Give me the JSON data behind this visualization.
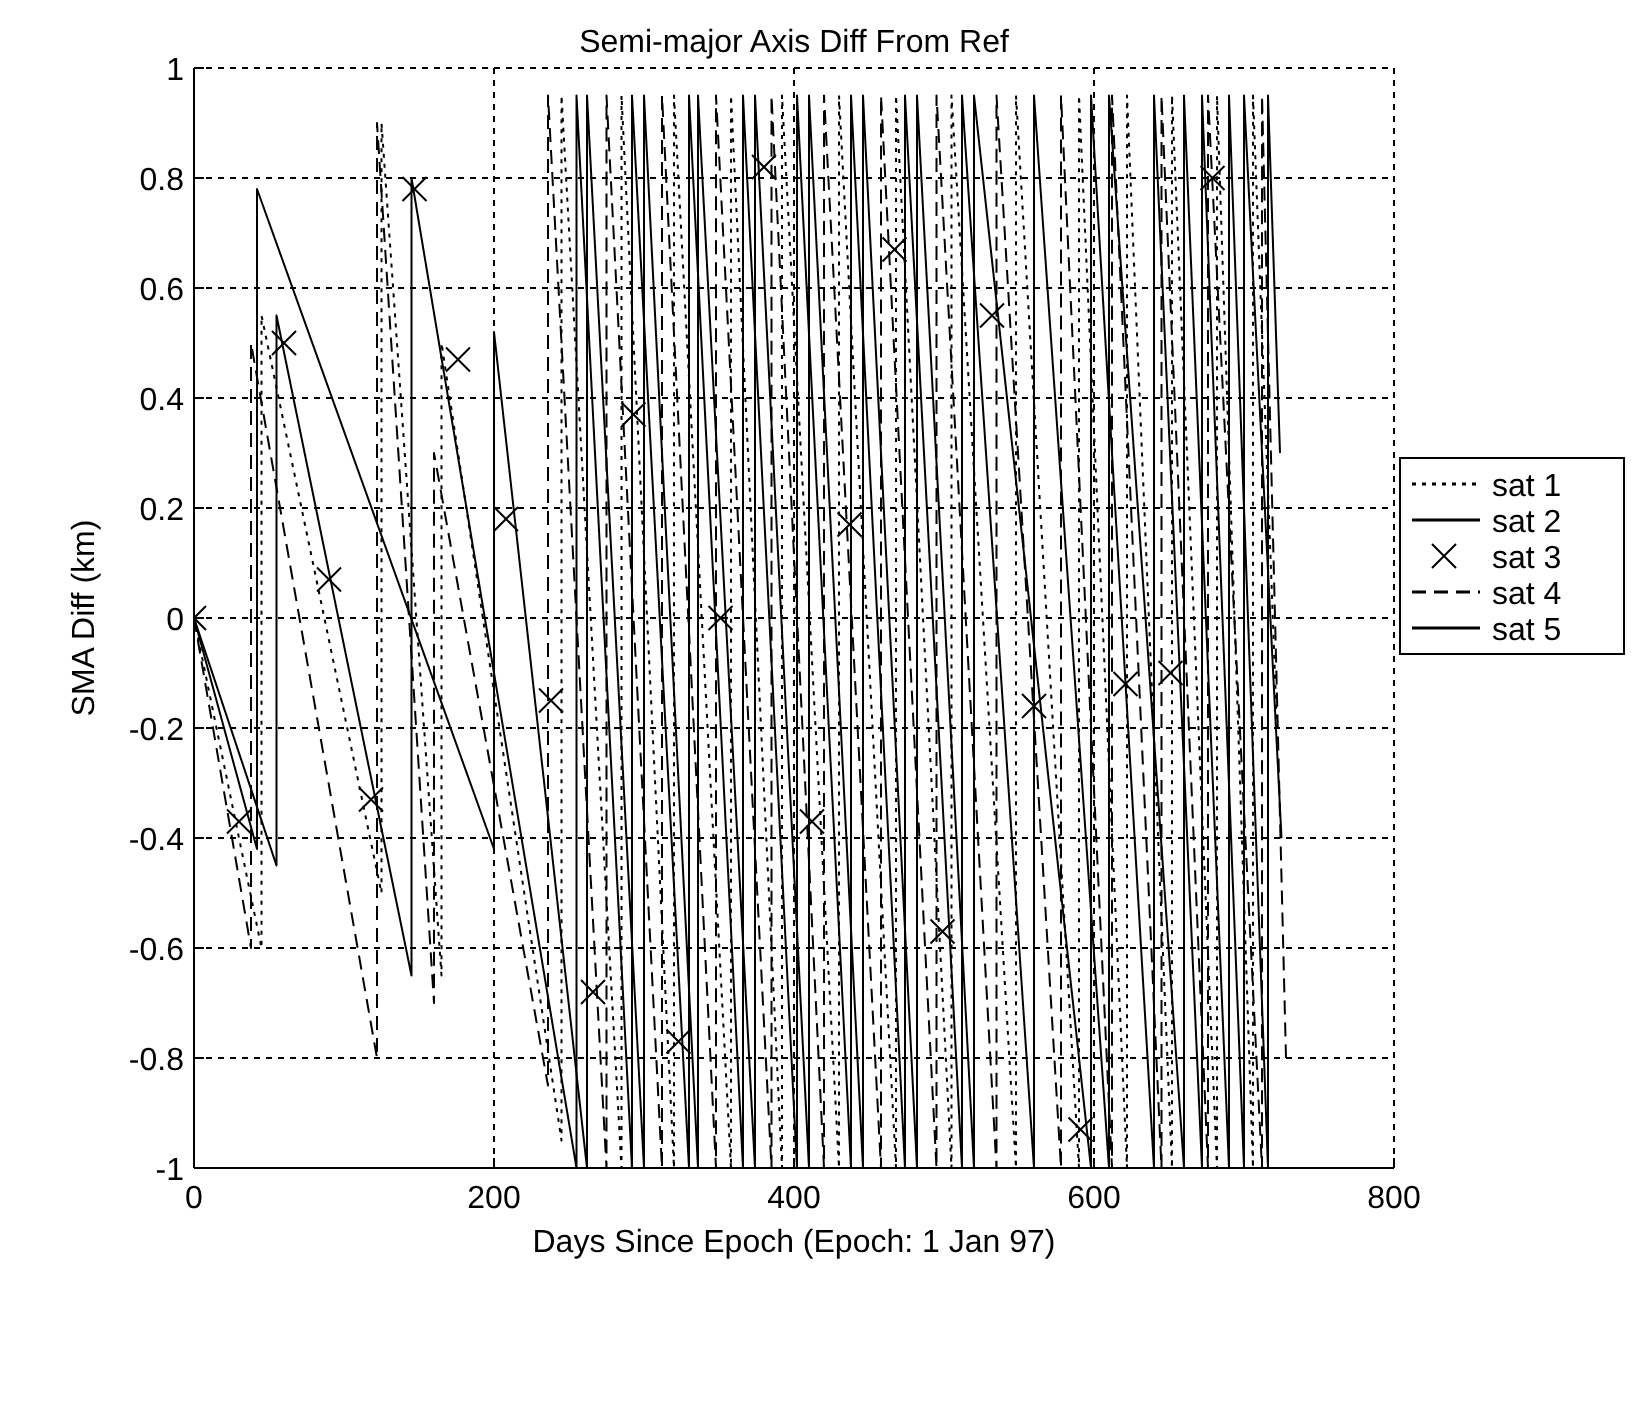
{
  "chart_data": {
    "type": "line",
    "title": "Semi-major Axis Diff From Ref",
    "xlabel": "Days Since Epoch (Epoch: 1 Jan 97)",
    "ylabel": "SMA Diff (km)",
    "xlim": [
      0,
      800
    ],
    "ylim": [
      -1,
      1
    ],
    "xticks": [
      0,
      200,
      400,
      600,
      800
    ],
    "yticks": [
      -1,
      -0.8,
      -0.6,
      -0.4,
      -0.2,
      0,
      0.2,
      0.4,
      0.6,
      0.8,
      1
    ],
    "grid": true,
    "legend": "right",
    "series": [
      {
        "name": "sat 1",
        "color": "#000000",
        "line_style": "dotted",
        "x": [
          0,
          45,
          45,
          125,
          125,
          165,
          165,
          245,
          245,
          285,
          285,
          320,
          320,
          358,
          358,
          392,
          392,
          430,
          430,
          468,
          468,
          505,
          505,
          548,
          548,
          590,
          590,
          622,
          622,
          652,
          652,
          682,
          682,
          706,
          706,
          722
        ],
        "values": [
          0,
          -0.6,
          0.55,
          -0.5,
          0.9,
          -0.65,
          0.5,
          -0.95,
          0.95,
          -1,
          0.95,
          -1,
          0.95,
          -1,
          0.95,
          -1,
          0.95,
          -1,
          0.95,
          -1,
          0.95,
          -1,
          0.95,
          -1,
          0.95,
          -1,
          0.95,
          -1,
          0.95,
          -1,
          0.95,
          -1,
          0.95,
          -1,
          0.95,
          -0.2
        ]
      },
      {
        "name": "sat 2",
        "color": "#000000",
        "line_style": "solid",
        "x": [
          0,
          42,
          42,
          200,
          200,
          262,
          262,
          300,
          300,
          336,
          336,
          374,
          374,
          410,
          410,
          446,
          446,
          482,
          482,
          520,
          520,
          598,
          598,
          640,
          640,
          672,
          672,
          700,
          700,
          725
        ],
        "values": [
          0,
          -0.42,
          0.78,
          -0.42,
          0.52,
          -1,
          0.95,
          -1,
          0.95,
          -1,
          0.95,
          -1,
          0.95,
          -1,
          0.95,
          -1,
          0.95,
          -1,
          0.95,
          -1,
          0.95,
          -1,
          0.95,
          -1,
          0.95,
          -1,
          0.95,
          -1,
          0.95,
          -0.4
        ]
      },
      {
        "name": "sat 3",
        "color": "#000000",
        "type": "scatter",
        "marker": "cross",
        "x": [
          0,
          30,
          60,
          90,
          118,
          147,
          176,
          208,
          238,
          266,
          293,
          323,
          351,
          380,
          412,
          437,
          467,
          499,
          532,
          560,
          591,
          621,
          651,
          679
        ],
        "values": [
          0,
          -0.37,
          0.5,
          0.07,
          -0.33,
          0.78,
          0.47,
          0.18,
          -0.15,
          -0.68,
          0.37,
          -0.77,
          0,
          0.82,
          -0.37,
          0.17,
          0.67,
          -0.57,
          0.55,
          -0.16,
          -0.93,
          -0.12,
          -0.1,
          0.8
        ]
      },
      {
        "name": "sat 4",
        "color": "#000000",
        "line_style": "dashed",
        "x": [
          0,
          38,
          38,
          122,
          122,
          160,
          160,
          236,
          236,
          275,
          275,
          312,
          312,
          348,
          348,
          385,
          385,
          420,
          420,
          458,
          458,
          495,
          495,
          535,
          535,
          578,
          578,
          612,
          612,
          645,
          645,
          676,
          676,
          712,
          712,
          728
        ],
        "values": [
          0,
          -0.6,
          0.5,
          -0.8,
          0.9,
          -0.7,
          0.3,
          -0.85,
          0.95,
          -1,
          0.95,
          -1,
          0.95,
          -1,
          0.95,
          -1,
          0.95,
          -1,
          0.95,
          -1,
          0.95,
          -1,
          0.95,
          -1,
          0.95,
          -1,
          0.95,
          -1,
          0.95,
          -1,
          0.95,
          -1,
          0.95,
          -1,
          0.95,
          -0.8
        ]
      },
      {
        "name": "sat 5",
        "color": "#000000",
        "line_style": "solid",
        "x": [
          0,
          55,
          55,
          145,
          145,
          255,
          255,
          292,
          292,
          330,
          330,
          366,
          366,
          402,
          402,
          438,
          438,
          474,
          474,
          512,
          512,
          560,
          560,
          610,
          610,
          660,
          660,
          690,
          690,
          716,
          716,
          724
        ],
        "values": [
          0,
          -0.45,
          0.55,
          -0.65,
          0.8,
          -1,
          0.95,
          -1,
          0.95,
          -1,
          0.95,
          -1,
          0.95,
          -1,
          0.95,
          -1,
          0.95,
          -1,
          0.95,
          -1,
          0.95,
          -1,
          0.95,
          -1,
          0.95,
          -1,
          0.95,
          -1,
          0.95,
          -1,
          0.95,
          0.3
        ]
      }
    ]
  }
}
